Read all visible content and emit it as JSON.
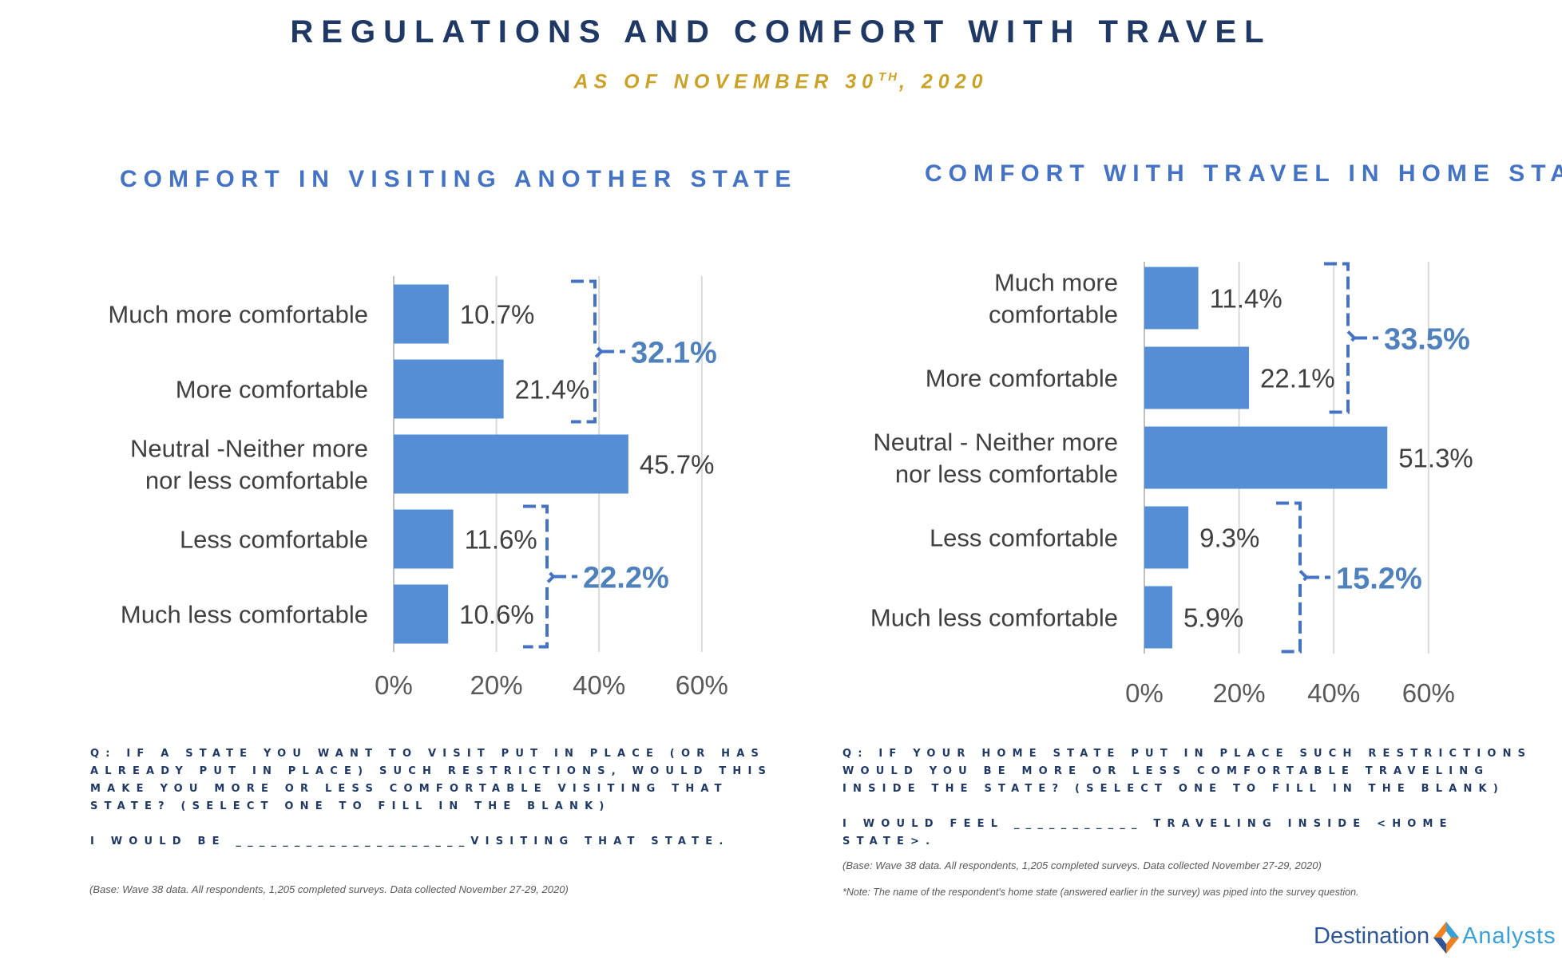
{
  "header": {
    "title": "REGULATIONS AND COMFORT WITH TRAVEL",
    "subtitle_prefix": "AS OF NOVEMBER 30",
    "subtitle_sup": "TH",
    "subtitle_suffix": ", 2020"
  },
  "chart_data": [
    {
      "type": "bar",
      "orientation": "horizontal",
      "title": "COMFORT IN VISITING ANOTHER STATE",
      "categories": [
        [
          "Much more comfortable"
        ],
        [
          "More comfortable"
        ],
        [
          "Neutral -Neither more",
          "nor less comfortable"
        ],
        [
          "Less comfortable"
        ],
        [
          "Much less comfortable"
        ]
      ],
      "values": [
        10.7,
        21.4,
        45.7,
        11.6,
        10.6
      ],
      "value_labels": [
        "10.7%",
        "21.4%",
        "45.7%",
        "11.6%",
        "10.6%"
      ],
      "xlim": [
        0,
        60
      ],
      "xticks": [
        "0%",
        "20%",
        "40%",
        "60%"
      ],
      "grid": true,
      "brackets": [
        {
          "from": 0,
          "to": 1,
          "label": "32.1%"
        },
        {
          "from": 3,
          "to": 4,
          "label": "22.2%"
        }
      ],
      "bar_color": "#558ed5",
      "bracket_color": "#4472c4"
    },
    {
      "type": "bar",
      "orientation": "horizontal",
      "title": "COMFORT WITH TRAVEL IN HOME STATE",
      "categories": [
        [
          "Much more",
          "comfortable"
        ],
        [
          "More comfortable"
        ],
        [
          "Neutral - Neither more",
          "nor less comfortable"
        ],
        [
          "Less comfortable"
        ],
        [
          "Much less comfortable"
        ]
      ],
      "values": [
        11.4,
        22.1,
        51.3,
        9.3,
        5.9
      ],
      "value_labels": [
        "11.4%",
        "22.1%",
        "51.3%",
        "9.3%",
        "5.9%"
      ],
      "xlim": [
        0,
        60
      ],
      "xticks": [
        "0%",
        "20%",
        "40%",
        "60%"
      ],
      "grid": true,
      "brackets": [
        {
          "from": 0,
          "to": 1,
          "label": "33.5%"
        },
        {
          "from": 3,
          "to": 4,
          "label": "15.2%"
        }
      ],
      "bar_color": "#558ed5",
      "bracket_color": "#4472c4"
    }
  ],
  "left_notes": {
    "question": "Q: IF A STATE YOU WANT TO VISIT PUT IN PLACE (OR HAS ALREADY PUT IN PLACE) SUCH RESTRICTIONS, WOULD THIS MAKE YOU MORE OR LESS COMFORTABLE VISITING THAT STATE?   (SELECT ONE TO FILL IN THE BLANK)",
    "fill_in": "I WOULD BE ____________________VISITING THAT STATE.",
    "base": "(Base: Wave 38 data. All respondents, 1,205 completed surveys. Data collected November 27-29, 2020)"
  },
  "right_notes": {
    "question": "Q: IF YOUR HOME STATE PUT IN PLACE SUCH RESTRICTIONS WOULD YOU BE MORE OR LESS COMFORTABLE TRAVELING INSIDE THE STATE? (SELECT ONE TO FILL IN THE BLANK)",
    "fill_in": "I WOULD FEEL ___________ TRAVELING INSIDE <HOME STATE>.",
    "base": "(Base: Wave 38 data. All respondents, 1,205 completed surveys. Data collected November 27-29, 2020)",
    "note": "*Note: The name of the respondent's home state (answered earlier in the survey) was piped into the survey question."
  },
  "logo": {
    "left_word": "Destination",
    "right_word": "Analysts",
    "colors": {
      "dark": "#2e5597",
      "light": "#3aa0d8",
      "orange": "#f07f1f"
    }
  }
}
